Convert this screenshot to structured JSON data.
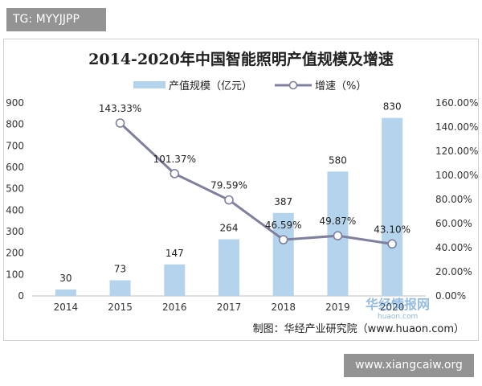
{
  "badges": {
    "top_left": "TG: MYYJJPP",
    "bottom_right": "www.xiangcaiw.org"
  },
  "watermark": {
    "name": "华经情报网",
    "url": "huaon.com"
  },
  "chart_data": {
    "type": "bar",
    "title": "2014-2020年中国智能照明产值规模及增速",
    "categories": [
      "2014",
      "2015",
      "2016",
      "2017",
      "2018",
      "2019",
      "2020"
    ],
    "series": [
      {
        "name": "产值规模（亿元）",
        "type": "bar",
        "axis": "left",
        "values": [
          30,
          73,
          147,
          264,
          387,
          580,
          830
        ],
        "labels": [
          "30",
          "73",
          "147",
          "264",
          "387",
          "580",
          "830"
        ],
        "color": "#b4d3ec"
      },
      {
        "name": "增速（%）",
        "type": "line",
        "axis": "right",
        "values": [
          null,
          143.33,
          101.37,
          79.59,
          46.59,
          49.87,
          43.1
        ],
        "labels": [
          "",
          "143.33%",
          "101.37%",
          "79.59%",
          "46.59%",
          "49.87%",
          "43.10%"
        ],
        "color": "#7f7f9e"
      }
    ],
    "y_left": {
      "min": 0,
      "max": 900,
      "step": 100,
      "ticks": [
        "0",
        "100",
        "200",
        "300",
        "400",
        "500",
        "600",
        "700",
        "800",
        "900"
      ]
    },
    "y_right": {
      "min": 0,
      "max": 160,
      "step": 20,
      "ticks": [
        "0.00%",
        "20.00%",
        "40.00%",
        "60.00%",
        "80.00%",
        "100.00%",
        "120.00%",
        "140.00%",
        "160.00%"
      ]
    },
    "legend_position": "top",
    "grid": false,
    "source": "制图：华经产业研究院（www.huaon.com）"
  }
}
